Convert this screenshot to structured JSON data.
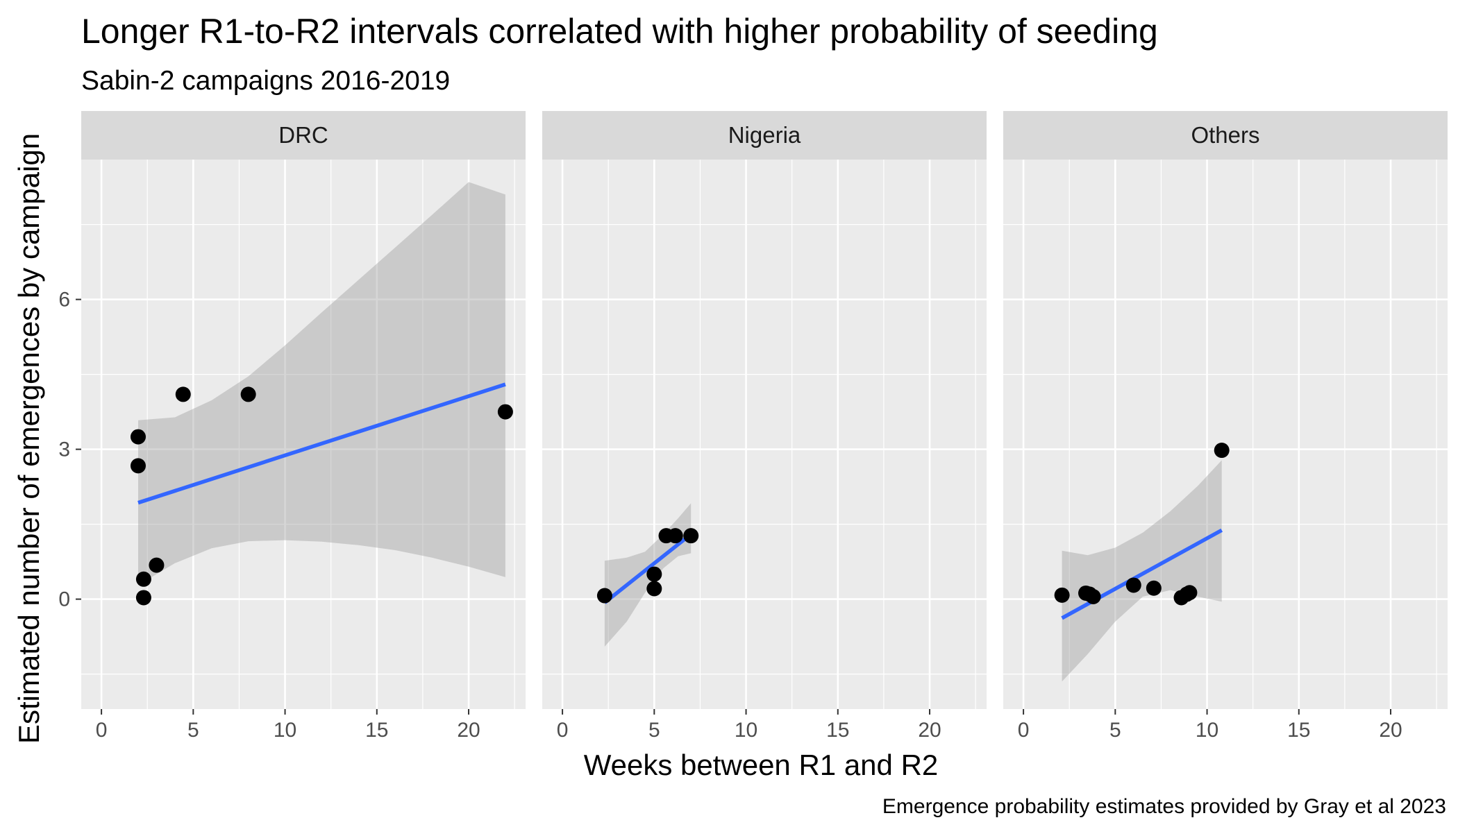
{
  "chart_data": {
    "type": "scatter",
    "title": "Longer R1-to-R2 intervals correlated with higher probability of seeding",
    "subtitle": "Sabin-2 campaigns 2016-2019",
    "caption": "Emergence probability estimates provided by Gray et al 2023",
    "xlabel": "Weeks between R1 and R2",
    "ylabel": "Estimated number of emergences by campaign",
    "xlim": [
      -1.1,
      23.1
    ],
    "ylim": [
      -2.2,
      8.8
    ],
    "x_ticks": [
      0,
      5,
      10,
      15,
      20
    ],
    "y_ticks": [
      0,
      3,
      6
    ],
    "grid": true,
    "colors": {
      "points": "#000000",
      "fit_line": "#3366FF",
      "ribbon": "#999999",
      "panel": "#EBEBEB",
      "strip": "#D9D9D9"
    },
    "panels": [
      {
        "name": "DRC",
        "points": [
          {
            "x": 2.0,
            "y": 3.25
          },
          {
            "x": 2.0,
            "y": 2.67
          },
          {
            "x": 2.3,
            "y": 0.4
          },
          {
            "x": 2.3,
            "y": 0.03
          },
          {
            "x": 3.0,
            "y": 0.68
          },
          {
            "x": 4.45,
            "y": 4.1
          },
          {
            "x": 8.0,
            "y": 4.1
          },
          {
            "x": 22.0,
            "y": 3.75
          }
        ],
        "fit": {
          "x": [
            2.0,
            22.0
          ],
          "y": [
            1.93,
            4.3
          ]
        },
        "ribbon": {
          "x": [
            2.0,
            4.0,
            6.0,
            8.0,
            10.0,
            12.0,
            14.0,
            16.0,
            18.0,
            20.0,
            22.0
          ],
          "lower": [
            0.28,
            0.72,
            1.02,
            1.16,
            1.18,
            1.15,
            1.08,
            0.98,
            0.83,
            0.65,
            0.44
          ],
          "upper": [
            3.58,
            3.64,
            3.98,
            4.46,
            5.08,
            5.74,
            6.39,
            7.04,
            7.69,
            8.35,
            8.1
          ]
        }
      },
      {
        "name": "Nigeria",
        "points": [
          {
            "x": 2.3,
            "y": 0.07
          },
          {
            "x": 5.0,
            "y": 0.21
          },
          {
            "x": 5.0,
            "y": 0.5
          },
          {
            "x": 5.65,
            "y": 1.27
          },
          {
            "x": 6.15,
            "y": 1.27
          },
          {
            "x": 7.0,
            "y": 1.27
          }
        ],
        "fit": {
          "x": [
            2.3,
            7.0
          ],
          "y": [
            -0.07,
            1.3
          ]
        },
        "ribbon": {
          "x": [
            2.3,
            3.5,
            4.5,
            5.5,
            6.3,
            7.0
          ],
          "lower": [
            -0.95,
            -0.45,
            0.13,
            0.62,
            0.86,
            0.92
          ],
          "upper": [
            0.77,
            0.83,
            0.95,
            1.3,
            1.62,
            1.92
          ]
        }
      },
      {
        "name": "Others",
        "points": [
          {
            "x": 2.1,
            "y": 0.08
          },
          {
            "x": 3.4,
            "y": 0.12
          },
          {
            "x": 3.6,
            "y": 0.1
          },
          {
            "x": 3.8,
            "y": 0.05
          },
          {
            "x": 6.0,
            "y": 0.28
          },
          {
            "x": 7.1,
            "y": 0.22
          },
          {
            "x": 8.6,
            "y": 0.03
          },
          {
            "x": 8.9,
            "y": 0.1
          },
          {
            "x": 9.05,
            "y": 0.13
          },
          {
            "x": 10.8,
            "y": 2.98
          }
        ],
        "fit": {
          "x": [
            2.1,
            10.8
          ],
          "y": [
            -0.38,
            1.38
          ]
        },
        "ribbon": {
          "x": [
            2.1,
            3.5,
            5.0,
            6.5,
            8.0,
            9.5,
            10.8
          ],
          "lower": [
            -1.65,
            -1.1,
            -0.45,
            0.05,
            0.18,
            0.05,
            -0.05
          ],
          "upper": [
            0.97,
            0.88,
            1.03,
            1.33,
            1.76,
            2.27,
            2.78
          ]
        }
      }
    ]
  }
}
